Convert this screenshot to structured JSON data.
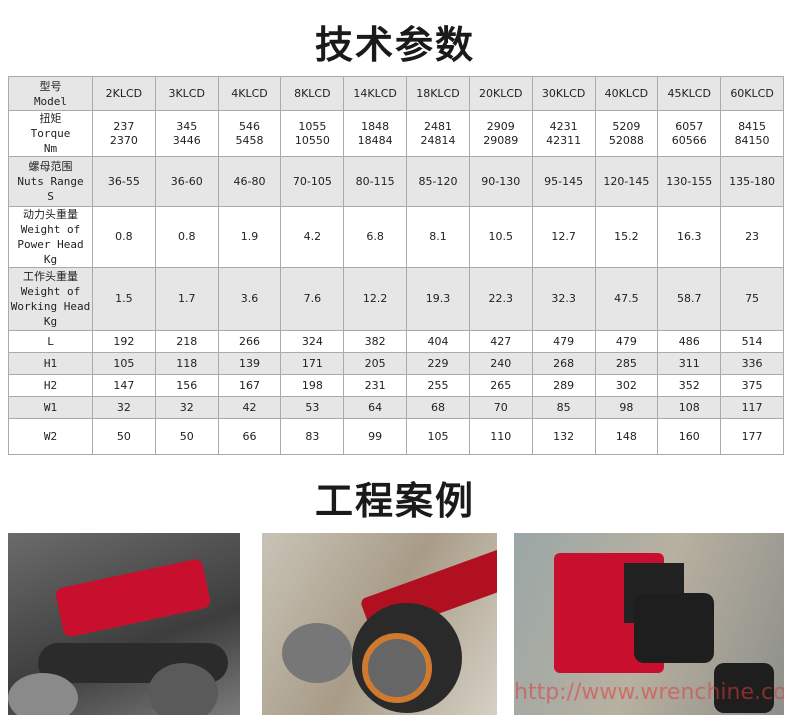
{
  "title": "技术参数",
  "cases_title": "工程案例",
  "table": {
    "header": {
      "label": [
        "型号",
        "Model"
      ],
      "models": [
        "2KLCD",
        "3KLCD",
        "4KLCD",
        "8KLCD",
        "14KLCD",
        "18KLCD",
        "20KLCD",
        "30KLCD",
        "40KLCD",
        "45KLCD",
        "60KLCD"
      ]
    },
    "rows": [
      {
        "label": [
          "扭矩",
          "Torque",
          "Nm"
        ],
        "values": [
          [
            "237",
            "2370"
          ],
          [
            "345",
            "3446"
          ],
          [
            "546",
            "5458"
          ],
          [
            "1055",
            "10550"
          ],
          [
            "1848",
            "18484"
          ],
          [
            "2481",
            "24814"
          ],
          [
            "2909",
            "29089"
          ],
          [
            "4231",
            "42311"
          ],
          [
            "5209",
            "52088"
          ],
          [
            "6057",
            "60566"
          ],
          [
            "8415",
            "84150"
          ]
        ]
      },
      {
        "label": [
          "螺母范围",
          "Nuts Range",
          "S"
        ],
        "values": [
          "36-55",
          "36-60",
          "46-80",
          "70-105",
          "80-115",
          "85-120",
          "90-130",
          "95-145",
          "120-145",
          "130-155",
          "135-180"
        ]
      },
      {
        "label": [
          "动力头重量",
          "Weight of",
          "Power Head",
          "Kg"
        ],
        "values": [
          "0.8",
          "0.8",
          "1.9",
          "4.2",
          "6.8",
          "8.1",
          "10.5",
          "12.7",
          "15.2",
          "16.3",
          "23"
        ]
      },
      {
        "label": [
          "工作头重量",
          "Weight of",
          "Working Head",
          "Kg"
        ],
        "values": [
          "1.5",
          "1.7",
          "3.6",
          "7.6",
          "12.2",
          "19.3",
          "22.3",
          "32.3",
          "47.5",
          "58.7",
          "75"
        ]
      },
      {
        "label": [
          "L"
        ],
        "values": [
          "192",
          "218",
          "266",
          "324",
          "382",
          "404",
          "427",
          "479",
          "479",
          "486",
          "514"
        ]
      },
      {
        "label": [
          "H1"
        ],
        "values": [
          "105",
          "118",
          "139",
          "171",
          "205",
          "229",
          "240",
          "268",
          "285",
          "311",
          "336"
        ]
      },
      {
        "label": [
          "H2"
        ],
        "values": [
          "147",
          "156",
          "167",
          "198",
          "231",
          "255",
          "265",
          "289",
          "302",
          "352",
          "375"
        ]
      },
      {
        "label": [
          "W1"
        ],
        "values": [
          "32",
          "32",
          "42",
          "53",
          "64",
          "68",
          "70",
          "85",
          "98",
          "108",
          "117"
        ]
      },
      {
        "label": [
          "W2"
        ],
        "values": [
          "50",
          "50",
          "66",
          "83",
          "99",
          "105",
          "110",
          "132",
          "148",
          "160",
          "177"
        ]
      }
    ]
  },
  "watermark": "http://www.wrenchine.com",
  "colors": {
    "header_bg": "#e6e6e6",
    "border": "#aaaaaa",
    "wrench_red": "#c8102e"
  }
}
